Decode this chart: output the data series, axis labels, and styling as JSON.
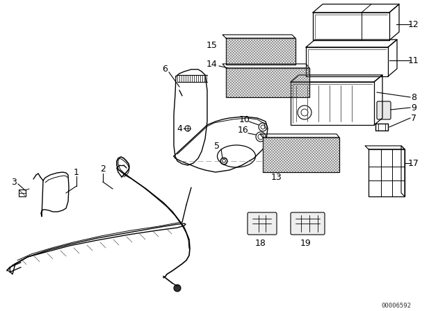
{
  "bg_color": "#ffffff",
  "line_color": "#000000",
  "watermark": "00006592",
  "fig_width": 6.4,
  "fig_height": 4.48,
  "dpi": 100,
  "labels": {
    "1": [
      110,
      258,
      118,
      268,
      118,
      280
    ],
    "2": [
      148,
      252,
      148,
      262,
      155,
      275
    ],
    "3": [
      28,
      262,
      42,
      275,
      50,
      278
    ],
    "4": [
      262,
      183,
      270,
      183,
      278,
      192
    ],
    "5": [
      316,
      210,
      316,
      220,
      322,
      232
    ],
    "6": [
      238,
      100,
      260,
      120,
      268,
      138
    ],
    "7": [
      573,
      152,
      568,
      158,
      560,
      163
    ],
    "8": [
      573,
      140,
      555,
      140,
      537,
      143
    ],
    "9": [
      573,
      152,
      560,
      152,
      548,
      158
    ],
    "10": [
      352,
      175,
      365,
      178,
      378,
      183
    ],
    "11": [
      573,
      88,
      558,
      88,
      535,
      88
    ],
    "12": [
      573,
      40,
      558,
      40,
      535,
      40
    ],
    "13": [
      390,
      255,
      390,
      255,
      390,
      255
    ],
    "14": [
      308,
      93,
      330,
      97,
      355,
      100
    ],
    "15": [
      308,
      68,
      308,
      68,
      308,
      68
    ],
    "16": [
      352,
      188,
      365,
      192,
      375,
      196
    ],
    "17": [
      573,
      235,
      560,
      235,
      538,
      235
    ],
    "18": [
      370,
      328,
      370,
      328,
      370,
      328
    ],
    "19": [
      428,
      328,
      428,
      328,
      428,
      328
    ]
  }
}
